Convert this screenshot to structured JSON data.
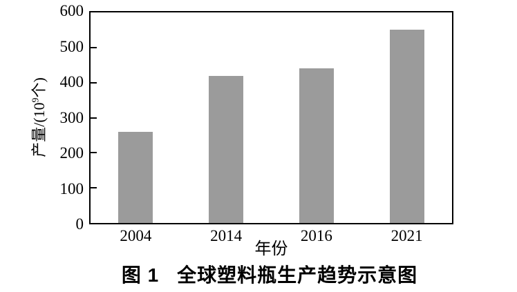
{
  "chart_data": {
    "type": "bar",
    "categories": [
      "2004",
      "2014",
      "2016",
      "2021"
    ],
    "values": [
      260,
      420,
      440,
      550
    ],
    "title": "图 1  全球塑料瓶生产趋势示意图",
    "xlabel": "年份",
    "ylabel": "产量/(10^9个)",
    "ylim": [
      0,
      600
    ],
    "yticks": [
      0,
      100,
      200,
      300,
      400,
      500,
      600
    ],
    "grid": false,
    "legend": false,
    "bar_color": "#9b9b9b",
    "axis_color": "#000000",
    "text_color": "#000000",
    "background_color": "#ffffff"
  },
  "figure": {
    "caption_prefix": "图 1",
    "caption_title": "全球塑料瓶生产趋势示意图",
    "ylabel_prefix": "产量/(10",
    "ylabel_sup": "9",
    "ylabel_suffix": "个)",
    "xlabel": "年份"
  }
}
